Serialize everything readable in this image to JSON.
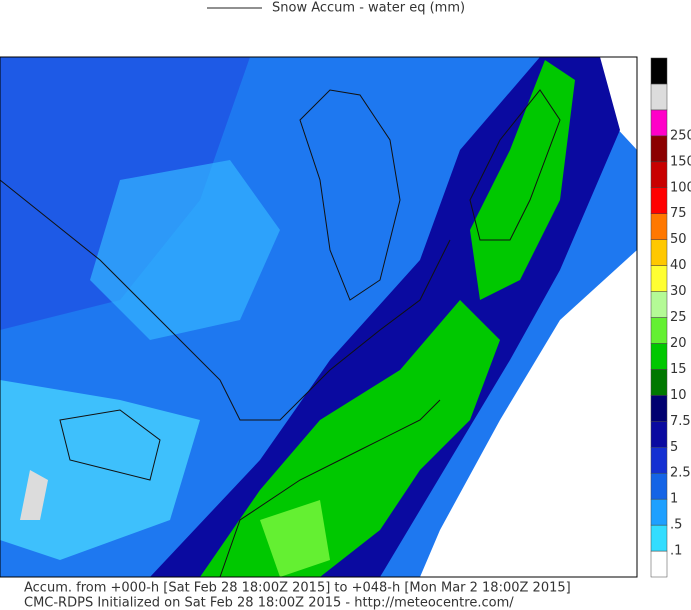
{
  "legend": {
    "title": "Snow Accum - water eq (mm)"
  },
  "colorbar": {
    "colors": [
      "#ffffff",
      "#33ddff",
      "#1ea0ff",
      "#1464e6",
      "#1430d2",
      "#0a0aa0",
      "#000070",
      "#007800",
      "#00c800",
      "#64f032",
      "#b4fa96",
      "#ffff32",
      "#ffc800",
      "#ff7800",
      "#ff0000",
      "#c80000",
      "#8b0000",
      "#ff00c8",
      "#dcdcdc",
      "#000000"
    ],
    "labels": [
      ".1",
      ".5",
      "1",
      "2.5",
      "5",
      "7.5",
      "10",
      "15",
      "20",
      "25",
      "30",
      "40",
      "50",
      "75",
      "100",
      "150",
      "250"
    ]
  },
  "footer": {
    "line1": "Accum. from +000-h [Sat Feb 28 18:00Z 2015] to +048-h [Mon Mar 2 18:00Z 2015]",
    "line2": "CMC-RDPS Initialized on Sat Feb 28 18:00Z 2015 - http://meteocentre.com/"
  }
}
